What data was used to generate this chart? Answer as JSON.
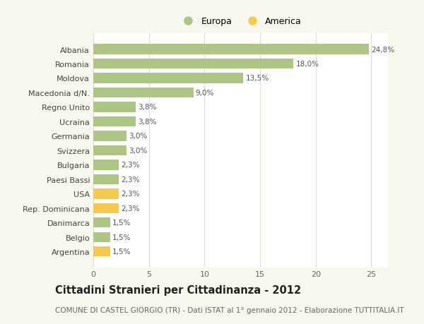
{
  "categories": [
    "Albania",
    "Romania",
    "Moldova",
    "Macedonia d/N.",
    "Regno Unito",
    "Ucraina",
    "Germania",
    "Svizzera",
    "Bulgaria",
    "Paesi Bassi",
    "USA",
    "Rep. Dominicana",
    "Danimarca",
    "Belgio",
    "Argentina"
  ],
  "values": [
    24.8,
    18.0,
    13.5,
    9.0,
    3.8,
    3.8,
    3.0,
    3.0,
    2.3,
    2.3,
    2.3,
    2.3,
    1.5,
    1.5,
    1.5
  ],
  "labels": [
    "24,8%",
    "18,0%",
    "13,5%",
    "9,0%",
    "3,8%",
    "3,8%",
    "3,0%",
    "3,0%",
    "2,3%",
    "2,3%",
    "2,3%",
    "2,3%",
    "1,5%",
    "1,5%",
    "1,5%"
  ],
  "colors": [
    "#aec685",
    "#aec685",
    "#aec685",
    "#aec685",
    "#aec685",
    "#aec685",
    "#aec685",
    "#aec685",
    "#aec685",
    "#aec685",
    "#f5c94e",
    "#f5c94e",
    "#aec685",
    "#aec685",
    "#f5c94e"
  ],
  "europa_color": "#aec685",
  "america_color": "#f5c94e",
  "xlim": [
    0,
    26.5
  ],
  "xticks": [
    0,
    5,
    10,
    15,
    20,
    25
  ],
  "title": "Cittadini Stranieri per Cittadinanza - 2012",
  "subtitle": "COMUNE DI CASTEL GIORGIO (TR) - Dati ISTAT al 1° gennaio 2012 - Elaborazione TUTTITALIA.IT",
  "legend_europa": "Europa",
  "legend_america": "America",
  "bg_color": "#f7f7ee",
  "plot_bg_color": "#ffffff",
  "grid_color": "#ddddcc",
  "bar_height": 0.7,
  "title_fontsize": 10.5,
  "subtitle_fontsize": 7.5,
  "tick_fontsize": 8,
  "label_fontsize": 7.5
}
